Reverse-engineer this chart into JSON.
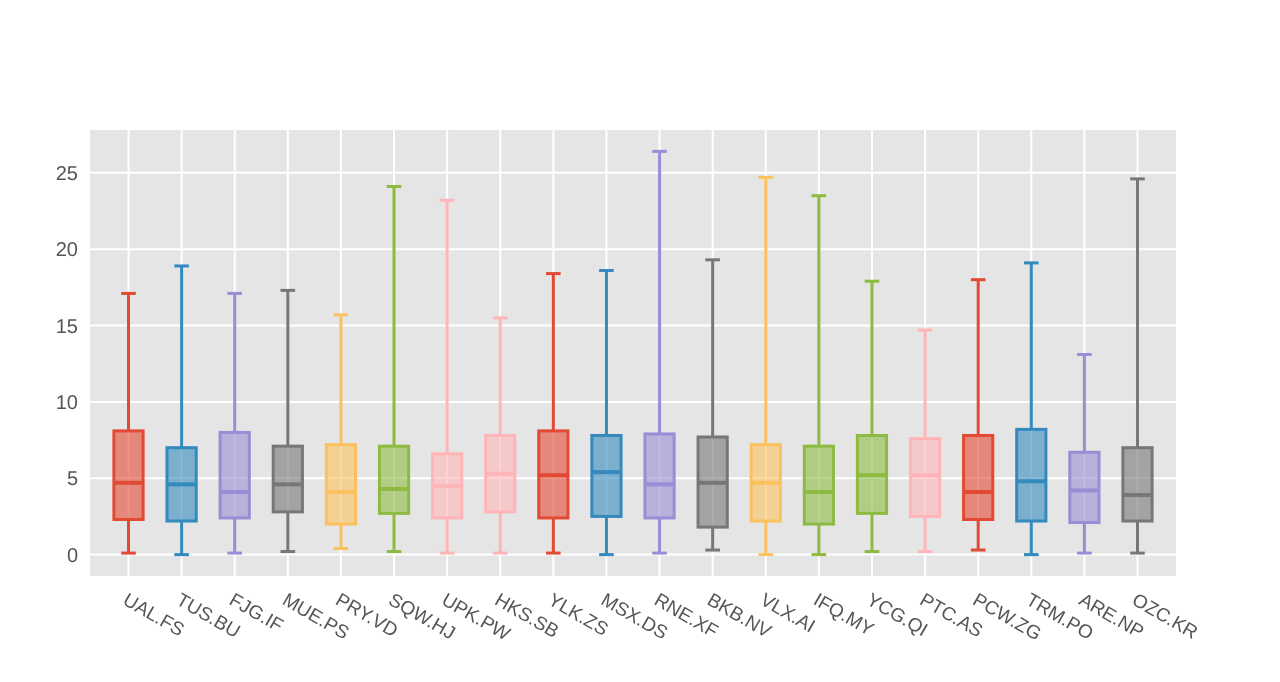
{
  "chart_data": {
    "type": "box",
    "categories": [
      "UAL.FS",
      "TUS.BU",
      "FJG.IF",
      "MUE.PS",
      "PRY.VD",
      "SQW.HJ",
      "UPK.PW",
      "HKS.SB",
      "YLK.ZS",
      "MSX.DS",
      "RNE.XF",
      "BKB.NV",
      "VLX.AI",
      "IFQ.MY",
      "YCG.QI",
      "PTC.AS",
      "PCW.ZG",
      "TRM.PO",
      "ARE.NP",
      "OZC.KR"
    ],
    "colors": [
      "#e24a33",
      "#348abd",
      "#988ed5",
      "#777777",
      "#fbc15e",
      "#8eba42",
      "#ffb5b8",
      "#ffb5b8",
      "#e24a33",
      "#348abd",
      "#988ed5",
      "#777777",
      "#fbc15e",
      "#8eba42",
      "#8eba42",
      "#ffb5b8",
      "#e24a33",
      "#348abd",
      "#988ed5",
      "#777777"
    ],
    "boxes": [
      {
        "low": 0.1,
        "q1": 2.3,
        "median": 4.7,
        "q3": 8.1,
        "high": 17.1
      },
      {
        "low": 0,
        "q1": 2.2,
        "median": 4.6,
        "q3": 7.0,
        "high": 18.9
      },
      {
        "low": 0.1,
        "q1": 2.4,
        "median": 4.1,
        "q3": 8.0,
        "high": 17.1
      },
      {
        "low": 0.2,
        "q1": 2.8,
        "median": 4.6,
        "q3": 7.1,
        "high": 17.3
      },
      {
        "low": 0.4,
        "q1": 2.0,
        "median": 4.1,
        "q3": 7.2,
        "high": 15.7
      },
      {
        "low": 0.2,
        "q1": 2.7,
        "median": 4.3,
        "q3": 7.1,
        "high": 24.1
      },
      {
        "low": 0.1,
        "q1": 2.4,
        "median": 4.5,
        "q3": 6.6,
        "high": 23.2
      },
      {
        "low": 0.1,
        "q1": 2.8,
        "median": 5.3,
        "q3": 7.8,
        "high": 15.5
      },
      {
        "low": 0.1,
        "q1": 2.4,
        "median": 5.2,
        "q3": 8.1,
        "high": 18.4
      },
      {
        "low": 0,
        "q1": 2.5,
        "median": 5.4,
        "q3": 7.8,
        "high": 18.6
      },
      {
        "low": 0.1,
        "q1": 2.4,
        "median": 4.6,
        "q3": 7.9,
        "high": 26.4
      },
      {
        "low": 0.3,
        "q1": 1.8,
        "median": 4.7,
        "q3": 7.7,
        "high": 19.3
      },
      {
        "low": 0,
        "q1": 2.2,
        "median": 4.7,
        "q3": 7.2,
        "high": 24.7
      },
      {
        "low": 0,
        "q1": 2.0,
        "median": 4.1,
        "q3": 7.1,
        "high": 23.5
      },
      {
        "low": 0.2,
        "q1": 2.7,
        "median": 5.2,
        "q3": 7.8,
        "high": 17.9
      },
      {
        "low": 0.2,
        "q1": 2.5,
        "median": 5.2,
        "q3": 7.6,
        "high": 14.7
      },
      {
        "low": 0.3,
        "q1": 2.3,
        "median": 4.1,
        "q3": 7.8,
        "high": 18.0
      },
      {
        "low": 0,
        "q1": 2.2,
        "median": 4.8,
        "q3": 8.2,
        "high": 19.1
      },
      {
        "low": 0.1,
        "q1": 2.1,
        "median": 4.2,
        "q3": 6.7,
        "high": 13.1
      },
      {
        "low": 0.1,
        "q1": 2.2,
        "median": 3.9,
        "q3": 7.0,
        "high": 24.6
      }
    ],
    "ylim": [
      -1.4,
      27.8
    ],
    "yticks": [
      0,
      5,
      10,
      15,
      20,
      25
    ],
    "grid": true
  }
}
